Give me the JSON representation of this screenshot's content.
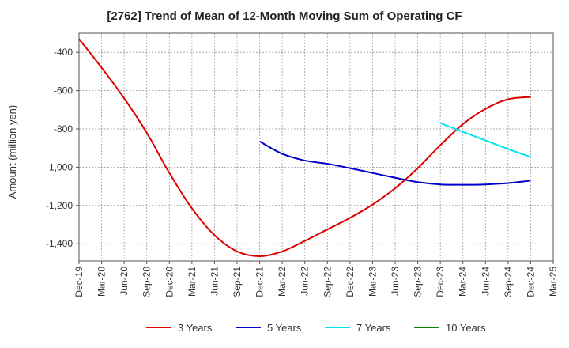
{
  "chart_data": {
    "type": "line",
    "title": "[2762]  Trend of Mean of 12-Month Moving Sum of Operating CF",
    "xlabel": "",
    "ylabel": "Amount (million yen)",
    "ylim": [
      -1490,
      -300
    ],
    "yticks": [
      -400,
      -600,
      -800,
      -1000,
      -1200,
      -1400
    ],
    "ytick_labels": [
      "-400",
      "-600",
      "-800",
      "-1,000",
      "-1,200",
      "-1,400"
    ],
    "x_categories": [
      "Dec-19",
      "Mar-20",
      "Jun-20",
      "Sep-20",
      "Dec-20",
      "Mar-21",
      "Jun-21",
      "Sep-21",
      "Dec-21",
      "Mar-22",
      "Jun-22",
      "Sep-22",
      "Dec-22",
      "Mar-23",
      "Jun-23",
      "Sep-23",
      "Dec-23",
      "Mar-24",
      "Jun-24",
      "Sep-24",
      "Dec-24",
      "Mar-25"
    ],
    "grid": true,
    "legend_position": "bottom",
    "series": [
      {
        "name": "3 Years",
        "color": "#dd0000",
        "start_index": 0,
        "values": [
          -330,
          -480,
          -640,
          -820,
          -1030,
          -1215,
          -1355,
          -1440,
          -1465,
          -1440,
          -1385,
          -1325,
          -1265,
          -1195,
          -1110,
          -1005,
          -885,
          -775,
          -695,
          -645,
          -633
        ]
      },
      {
        "name": "5 Years",
        "color": "#0000cc",
        "start_index": 8,
        "values": [
          -865,
          -930,
          -965,
          -982,
          -1005,
          -1030,
          -1055,
          -1078,
          -1090,
          -1092,
          -1090,
          -1083,
          -1070
        ]
      },
      {
        "name": "7 Years",
        "color": "#00e5ee",
        "start_index": 16,
        "values": [
          -770,
          -815,
          -860,
          -905,
          -946
        ]
      },
      {
        "name": "10 Years",
        "color": "#008800",
        "start_index": 20,
        "values": []
      }
    ]
  }
}
